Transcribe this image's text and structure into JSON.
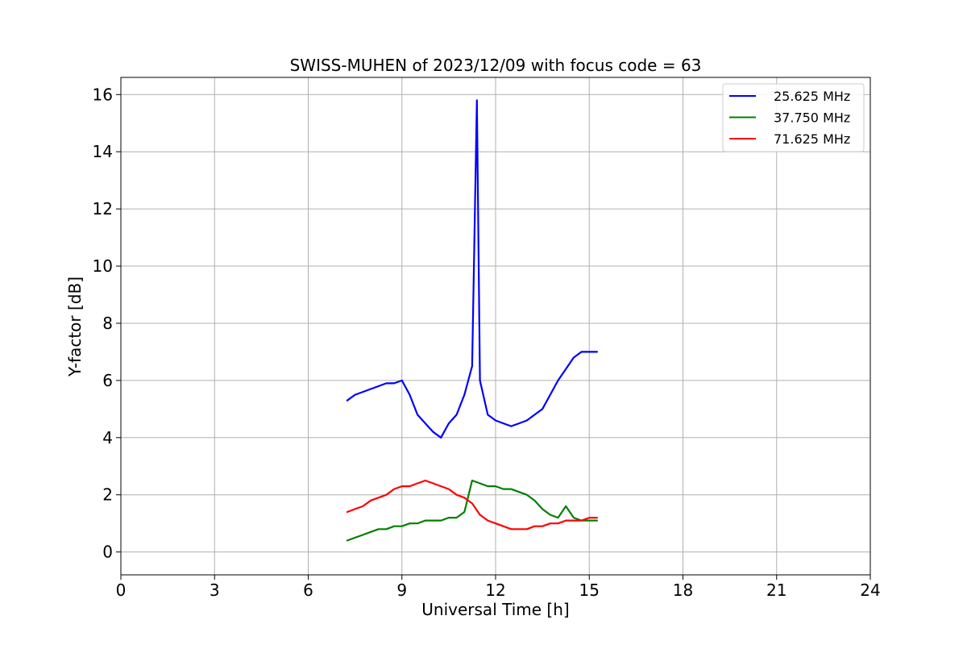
{
  "chart_data": {
    "type": "line",
    "title": "SWISS-MUHEN of 2023/12/09 with focus code = 63",
    "xlabel": "Universal Time [h]",
    "ylabel": "Y-factor [dB]",
    "xlim": [
      0,
      24
    ],
    "ylim": [
      -0.8,
      16.6
    ],
    "xticks": [
      0,
      3,
      6,
      9,
      12,
      15,
      18,
      21,
      24
    ],
    "yticks": [
      0,
      2,
      4,
      6,
      8,
      10,
      12,
      14,
      16
    ],
    "grid": true,
    "legend_position": "top-right",
    "series": [
      {
        "name": "25.625 MHz",
        "color": "#0000ff",
        "x": [
          7.25,
          7.5,
          7.75,
          8.0,
          8.25,
          8.5,
          8.75,
          9.0,
          9.25,
          9.5,
          9.75,
          10.0,
          10.25,
          10.5,
          10.75,
          11.0,
          11.25,
          11.4,
          11.5,
          11.75,
          12.0,
          12.25,
          12.5,
          12.75,
          13.0,
          13.25,
          13.5,
          13.75,
          14.0,
          14.25,
          14.5,
          14.75,
          15.0,
          15.25
        ],
        "y": [
          5.3,
          5.5,
          5.6,
          5.7,
          5.8,
          5.9,
          5.9,
          6.0,
          5.5,
          4.8,
          4.5,
          4.2,
          4.0,
          4.5,
          4.8,
          5.5,
          6.5,
          15.8,
          6.0,
          4.8,
          4.6,
          4.5,
          4.4,
          4.5,
          4.6,
          4.8,
          5.0,
          5.5,
          6.0,
          6.4,
          6.8,
          7.0,
          7.0,
          7.0
        ]
      },
      {
        "name": "37.750 MHz",
        "color": "#008000",
        "x": [
          7.25,
          7.5,
          7.75,
          8.0,
          8.25,
          8.5,
          8.75,
          9.0,
          9.25,
          9.5,
          9.75,
          10.0,
          10.25,
          10.5,
          10.75,
          11.0,
          11.25,
          11.5,
          11.75,
          12.0,
          12.25,
          12.5,
          12.75,
          13.0,
          13.25,
          13.5,
          13.75,
          14.0,
          14.25,
          14.5,
          14.75,
          15.0,
          15.25
        ],
        "y": [
          0.4,
          0.5,
          0.6,
          0.7,
          0.8,
          0.8,
          0.9,
          0.9,
          1.0,
          1.0,
          1.1,
          1.1,
          1.1,
          1.2,
          1.2,
          1.4,
          2.5,
          2.4,
          2.3,
          2.3,
          2.2,
          2.2,
          2.1,
          2.0,
          1.8,
          1.5,
          1.3,
          1.2,
          1.6,
          1.2,
          1.1,
          1.1,
          1.1
        ]
      },
      {
        "name": "71.625 MHz",
        "color": "#ff0000",
        "x": [
          7.25,
          7.5,
          7.75,
          8.0,
          8.25,
          8.5,
          8.75,
          9.0,
          9.25,
          9.5,
          9.75,
          10.0,
          10.25,
          10.5,
          10.75,
          11.0,
          11.25,
          11.5,
          11.75,
          12.0,
          12.25,
          12.5,
          12.75,
          13.0,
          13.25,
          13.5,
          13.75,
          14.0,
          14.25,
          14.5,
          14.75,
          15.0,
          15.25
        ],
        "y": [
          1.4,
          1.5,
          1.6,
          1.8,
          1.9,
          2.0,
          2.2,
          2.3,
          2.3,
          2.4,
          2.5,
          2.4,
          2.3,
          2.2,
          2.0,
          1.9,
          1.7,
          1.3,
          1.1,
          1.0,
          0.9,
          0.8,
          0.8,
          0.8,
          0.9,
          0.9,
          1.0,
          1.0,
          1.1,
          1.1,
          1.1,
          1.2,
          1.2
        ]
      }
    ]
  }
}
